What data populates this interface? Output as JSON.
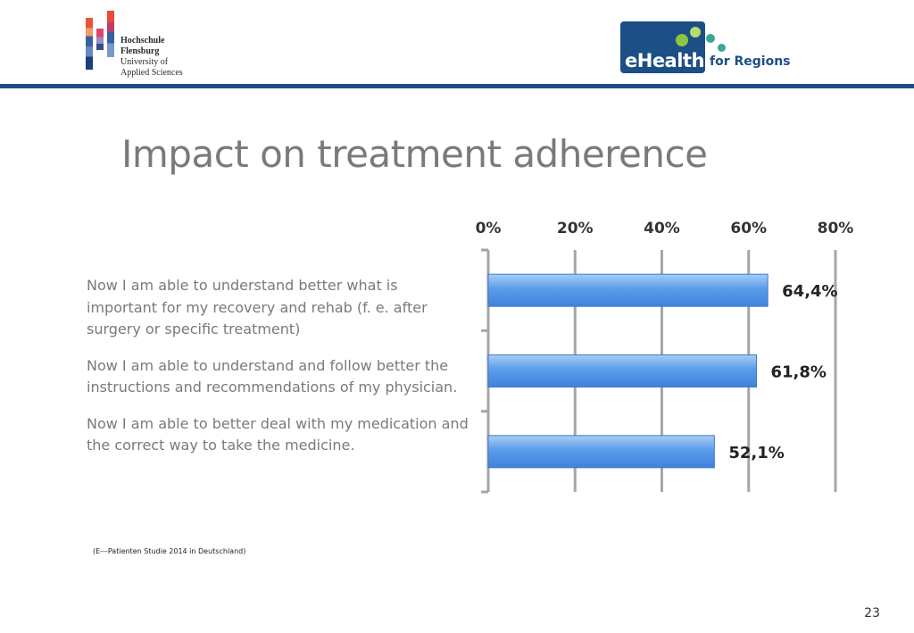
{
  "header": {
    "university_logo": {
      "lines": [
        "Hochschule",
        "Flensburg",
        "University of",
        "Applied Sciences"
      ]
    },
    "project_logo": {
      "main": "eHealth",
      "sub": "for Regions"
    },
    "colors": {
      "brand_blue": "#1c4f86",
      "green_dot": "#8cc63f",
      "teal_dot": "#3aa79b"
    }
  },
  "slide": {
    "title": "Impact on treatment adherence",
    "statements": [
      "Now I am able to understand better what is important for my recovery and rehab (f. e. after surgery or specific treatment)",
      "Now I am able to understand and follow better the instructions and recommendations of my physician.",
      "Now I am able to better deal with my medication and the correct way to take the medicine."
    ],
    "source": "(E---Patienten Studie 2014 in Deutschland)",
    "page_number": "23"
  },
  "chart_data": {
    "type": "bar",
    "orientation": "horizontal",
    "categories": [
      "Now I am able to understand better what is important for my recovery and rehab (f. e. after surgery or specific treatment)",
      "Now I am able to understand and follow better the instructions and recommendations of my physician.",
      "Now I am able to better deal with my medication and the correct way to take the medicine."
    ],
    "values": [
      64.4,
      61.8,
      52.1
    ],
    "value_labels": [
      "64,4%",
      "61,8%",
      "52,1%"
    ],
    "x_ticks": [
      "0%",
      "20%",
      "40%",
      "60%",
      "80%"
    ],
    "xlim": [
      0,
      80
    ],
    "x_axis_position": "top",
    "grid": true,
    "bar_color": "#4f94e8"
  }
}
